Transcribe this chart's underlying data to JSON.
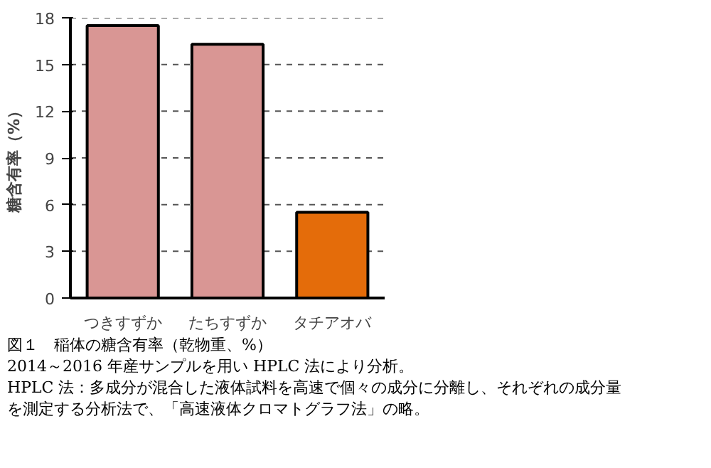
{
  "chart_data": {
    "type": "bar",
    "title": "図１　稲体の糖含有率（乾物重、%）",
    "ylabel": "糖含有率（%）",
    "categories": [
      "つきすずか",
      "たちすずか",
      "タチアオバ"
    ],
    "values": [
      17.5,
      16.3,
      5.5
    ],
    "colors": [
      "#d99694",
      "#d99694",
      "#e46c0a"
    ],
    "ylim": [
      0,
      18
    ],
    "yticks": [
      0,
      3,
      6,
      9,
      12,
      15,
      18
    ],
    "grid": "y",
    "annotations": [
      "2014～2016 年産サンプルを用い HPLC 法により分析。",
      "HPLC 法：多成分が混合した液体試料を高速で個々の成分に分離し、それぞれの成分量を測定する分析法で、「高速液体クロマトグラフ法」の略。"
    ]
  }
}
